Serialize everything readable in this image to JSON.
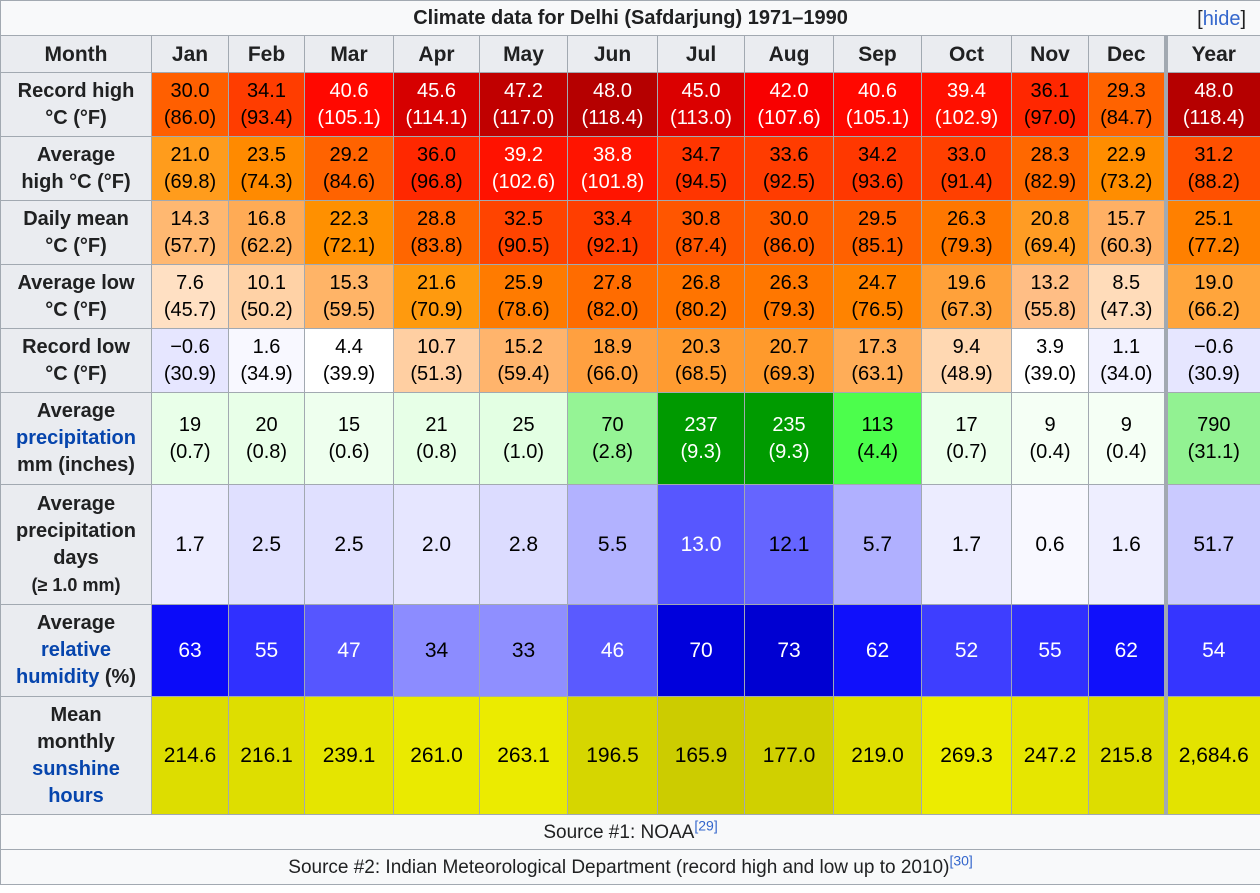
{
  "title": "Climate data for Delhi (Safdarjung) 1971–1990",
  "hide_label": "hide",
  "header": [
    "Month",
    "Jan",
    "Feb",
    "Mar",
    "Apr",
    "May",
    "Jun",
    "Jul",
    "Aug",
    "Sep",
    "Oct",
    "Nov",
    "Dec",
    "Year"
  ],
  "rows": [
    {
      "id": "record-high",
      "label": [
        "Record high",
        "°C (°F)"
      ],
      "cells": [
        {
          "a": "30.0",
          "b": "(86.0)",
          "bg": "#ff5f00",
          "fg": "#000000"
        },
        {
          "a": "34.1",
          "b": "(93.4)",
          "bg": "#ff3d00",
          "fg": "#000000"
        },
        {
          "a": "40.6",
          "b": "(105.1)",
          "bg": "#ff0800",
          "fg": "#ffffff"
        },
        {
          "a": "45.6",
          "b": "(114.1)",
          "bg": "#d60000",
          "fg": "#ffffff"
        },
        {
          "a": "47.2",
          "b": "(117.0)",
          "bg": "#c00000",
          "fg": "#ffffff"
        },
        {
          "a": "48.0",
          "b": "(118.4)",
          "bg": "#b50000",
          "fg": "#ffffff"
        },
        {
          "a": "45.0",
          "b": "(113.0)",
          "bg": "#db0000",
          "fg": "#ffffff"
        },
        {
          "a": "42.0",
          "b": "(107.6)",
          "bg": "#f80000",
          "fg": "#ffffff"
        },
        {
          "a": "40.6",
          "b": "(105.1)",
          "bg": "#ff0800",
          "fg": "#ffffff"
        },
        {
          "a": "39.4",
          "b": "(102.9)",
          "bg": "#ff1000",
          "fg": "#ffffff"
        },
        {
          "a": "36.1",
          "b": "(97.0)",
          "bg": "#ff2700",
          "fg": "#000000"
        },
        {
          "a": "29.3",
          "b": "(84.7)",
          "bg": "#ff6300",
          "fg": "#000000"
        }
      ],
      "year": {
        "a": "48.0",
        "b": "(118.4)",
        "bg": "#b50000",
        "fg": "#ffffff"
      }
    },
    {
      "id": "average-high",
      "label": [
        "Average",
        "high °C (°F)"
      ],
      "cells": [
        {
          "a": "21.0",
          "b": "(69.8)",
          "bg": "#ff9c1c",
          "fg": "#000000"
        },
        {
          "a": "23.5",
          "b": "(74.3)",
          "bg": "#ff8a00",
          "fg": "#000000"
        },
        {
          "a": "29.2",
          "b": "(84.6)",
          "bg": "#ff6300",
          "fg": "#000000"
        },
        {
          "a": "36.0",
          "b": "(96.8)",
          "bg": "#ff2800",
          "fg": "#000000"
        },
        {
          "a": "39.2",
          "b": "(102.6)",
          "bg": "#ff1200",
          "fg": "#ffffff"
        },
        {
          "a": "38.8",
          "b": "(101.8)",
          "bg": "#ff1400",
          "fg": "#ffffff"
        },
        {
          "a": "34.7",
          "b": "(94.5)",
          "bg": "#ff3500",
          "fg": "#000000"
        },
        {
          "a": "33.6",
          "b": "(92.5)",
          "bg": "#ff3c00",
          "fg": "#000000"
        },
        {
          "a": "34.2",
          "b": "(93.6)",
          "bg": "#ff3800",
          "fg": "#000000"
        },
        {
          "a": "33.0",
          "b": "(91.4)",
          "bg": "#ff4000",
          "fg": "#000000"
        },
        {
          "a": "28.3",
          "b": "(82.9)",
          "bg": "#ff6800",
          "fg": "#000000"
        },
        {
          "a": "22.9",
          "b": "(73.2)",
          "bg": "#ff8d00",
          "fg": "#000000"
        }
      ],
      "year": {
        "a": "31.2",
        "b": "(88.2)",
        "bg": "#ff5000",
        "fg": "#000000"
      }
    },
    {
      "id": "daily-mean",
      "label": [
        "Daily mean",
        "°C (°F)"
      ],
      "cells": [
        {
          "a": "14.3",
          "b": "(57.7)",
          "bg": "#ffb871",
          "fg": "#000000"
        },
        {
          "a": "16.8",
          "b": "(62.2)",
          "bg": "#ffab55",
          "fg": "#000000"
        },
        {
          "a": "22.3",
          "b": "(72.1)",
          "bg": "#ff9000",
          "fg": "#000000"
        },
        {
          "a": "28.8",
          "b": "(83.8)",
          "bg": "#ff6600",
          "fg": "#000000"
        },
        {
          "a": "32.5",
          "b": "(90.5)",
          "bg": "#ff4400",
          "fg": "#000000"
        },
        {
          "a": "33.4",
          "b": "(92.1)",
          "bg": "#ff3e00",
          "fg": "#000000"
        },
        {
          "a": "30.8",
          "b": "(87.4)",
          "bg": "#ff5600",
          "fg": "#000000"
        },
        {
          "a": "30.0",
          "b": "(86.0)",
          "bg": "#ff5d00",
          "fg": "#000000"
        },
        {
          "a": "29.5",
          "b": "(85.1)",
          "bg": "#ff6100",
          "fg": "#000000"
        },
        {
          "a": "26.3",
          "b": "(79.3)",
          "bg": "#ff7700",
          "fg": "#000000"
        },
        {
          "a": "20.8",
          "b": "(69.4)",
          "bg": "#ff9c24",
          "fg": "#000000"
        },
        {
          "a": "15.7",
          "b": "(60.3)",
          "bg": "#ffb064",
          "fg": "#000000"
        }
      ],
      "year": {
        "a": "25.1",
        "b": "(77.2)",
        "bg": "#ff8000",
        "fg": "#000000"
      }
    },
    {
      "id": "average-low",
      "label": [
        "Average low",
        "°C (°F)"
      ],
      "cells": [
        {
          "a": "7.6",
          "b": "(45.7)",
          "bg": "#ffe0c3",
          "fg": "#000000"
        },
        {
          "a": "10.1",
          "b": "(50.2)",
          "bg": "#ffd2a6",
          "fg": "#000000"
        },
        {
          "a": "15.3",
          "b": "(59.5)",
          "bg": "#ffb467",
          "fg": "#000000"
        },
        {
          "a": "21.6",
          "b": "(70.9)",
          "bg": "#ff9a0e",
          "fg": "#000000"
        },
        {
          "a": "25.9",
          "b": "(78.6)",
          "bg": "#ff7b00",
          "fg": "#000000"
        },
        {
          "a": "27.8",
          "b": "(82.0)",
          "bg": "#ff6c00",
          "fg": "#000000"
        },
        {
          "a": "26.8",
          "b": "(80.2)",
          "bg": "#ff7400",
          "fg": "#000000"
        },
        {
          "a": "26.3",
          "b": "(79.3)",
          "bg": "#ff7700",
          "fg": "#000000"
        },
        {
          "a": "24.7",
          "b": "(76.5)",
          "bg": "#ff8300",
          "fg": "#000000"
        },
        {
          "a": "19.6",
          "b": "(67.3)",
          "bg": "#ffa13a",
          "fg": "#000000"
        },
        {
          "a": "13.2",
          "b": "(55.8)",
          "bg": "#ffbe85",
          "fg": "#000000"
        },
        {
          "a": "8.5",
          "b": "(47.3)",
          "bg": "#ffdcba",
          "fg": "#000000"
        }
      ],
      "year": {
        "a": "19.0",
        "b": "(66.2)",
        "bg": "#ffa53c",
        "fg": "#000000"
      }
    },
    {
      "id": "record-low",
      "label": [
        "Record low",
        "°C (°F)"
      ],
      "cells": [
        {
          "a": "−0.6",
          "b": "(30.9)",
          "bg": "#e6e6ff",
          "fg": "#000000"
        },
        {
          "a": "1.6",
          "b": "(34.9)",
          "bg": "#f8f8ff",
          "fg": "#000000"
        },
        {
          "a": "4.4",
          "b": "(39.9)",
          "bg": "#ffffff",
          "fg": "#000000"
        },
        {
          "a": "10.7",
          "b": "(51.3)",
          "bg": "#ffcfa2",
          "fg": "#000000"
        },
        {
          "a": "15.2",
          "b": "(59.4)",
          "bg": "#ffb46c",
          "fg": "#000000"
        },
        {
          "a": "18.9",
          "b": "(66.0)",
          "bg": "#ffa040",
          "fg": "#000000"
        },
        {
          "a": "20.3",
          "b": "(68.5)",
          "bg": "#ff9b30",
          "fg": "#000000"
        },
        {
          "a": "20.7",
          "b": "(69.3)",
          "bg": "#ff9a2c",
          "fg": "#000000"
        },
        {
          "a": "17.3",
          "b": "(63.1)",
          "bg": "#ffad58",
          "fg": "#000000"
        },
        {
          "a": "9.4",
          "b": "(48.9)",
          "bg": "#ffd8b2",
          "fg": "#000000"
        },
        {
          "a": "3.9",
          "b": "(39.0)",
          "bg": "#ffffff",
          "fg": "#000000"
        },
        {
          "a": "1.1",
          "b": "(34.0)",
          "bg": "#f2f2ff",
          "fg": "#000000"
        }
      ],
      "year": {
        "a": "−0.6",
        "b": "(30.9)",
        "bg": "#e6e6ff",
        "fg": "#000000"
      }
    },
    {
      "id": "average-precipitation",
      "label": [
        "Average",
        "precipitation",
        "mm (inches)"
      ],
      "link_line": 1,
      "cells": [
        {
          "a": "19",
          "b": "(0.7)",
          "bg": "#e9ffe9",
          "fg": "#000000"
        },
        {
          "a": "20",
          "b": "(0.8)",
          "bg": "#e8ffe8",
          "fg": "#000000"
        },
        {
          "a": "15",
          "b": "(0.6)",
          "bg": "#eeffee",
          "fg": "#000000"
        },
        {
          "a": "21",
          "b": "(0.8)",
          "bg": "#e7ffe7",
          "fg": "#000000"
        },
        {
          "a": "25",
          "b": "(1.0)",
          "bg": "#e3ffe3",
          "fg": "#000000"
        },
        {
          "a": "70",
          "b": "(2.8)",
          "bg": "#95f495",
          "fg": "#000000"
        },
        {
          "a": "237",
          "b": "(9.3)",
          "bg": "#009a00",
          "fg": "#ffffff"
        },
        {
          "a": "235",
          "b": "(9.3)",
          "bg": "#009b00",
          "fg": "#ffffff"
        },
        {
          "a": "113",
          "b": "(4.4)",
          "bg": "#4cfe4c",
          "fg": "#000000"
        },
        {
          "a": "17",
          "b": "(0.7)",
          "bg": "#ecffec",
          "fg": "#000000"
        },
        {
          "a": "9",
          "b": "(0.4)",
          "bg": "#f5fff5",
          "fg": "#000000"
        },
        {
          "a": "9",
          "b": "(0.4)",
          "bg": "#f5fff5",
          "fg": "#000000"
        }
      ],
      "year": {
        "a": "790",
        "b": "(31.1)",
        "bg": "#92f292",
        "fg": "#000000"
      }
    },
    {
      "id": "average-precipitation-days",
      "label": [
        "Average",
        "precipitation",
        "days",
        "(≥ 1.0 mm)"
      ],
      "small_last": true,
      "single": true,
      "cells": [
        {
          "a": "1.7",
          "bg": "#ececff",
          "fg": "#000000"
        },
        {
          "a": "2.5",
          "bg": "#e0e0ff",
          "fg": "#000000"
        },
        {
          "a": "2.5",
          "bg": "#e0e0ff",
          "fg": "#000000"
        },
        {
          "a": "2.0",
          "bg": "#e6e6ff",
          "fg": "#000000"
        },
        {
          "a": "2.8",
          "bg": "#dcdcff",
          "fg": "#000000"
        },
        {
          "a": "5.5",
          "bg": "#b2b2ff",
          "fg": "#000000"
        },
        {
          "a": "13.0",
          "bg": "#5757ff",
          "fg": "#ffffff"
        },
        {
          "a": "12.1",
          "bg": "#6565ff",
          "fg": "#000000"
        },
        {
          "a": "5.7",
          "bg": "#b0b0ff",
          "fg": "#000000"
        },
        {
          "a": "1.7",
          "bg": "#ececff",
          "fg": "#000000"
        },
        {
          "a": "0.6",
          "bg": "#f8f8ff",
          "fg": "#000000"
        },
        {
          "a": "1.6",
          "bg": "#eeeeff",
          "fg": "#000000"
        }
      ],
      "year": {
        "a": "51.7",
        "bg": "#cacaff",
        "fg": "#000000"
      }
    },
    {
      "id": "average-relative-humidity",
      "label_parts": [
        {
          "line": "Average",
          "link": false
        },
        {
          "line": "relative",
          "link": true
        },
        {
          "line": "humidity",
          "link": true,
          "suffix": " (%)"
        }
      ],
      "single": true,
      "cells": [
        {
          "a": "63",
          "bg": "#0b0bf9",
          "fg": "#ffffff"
        },
        {
          "a": "55",
          "bg": "#3030ff",
          "fg": "#ffffff"
        },
        {
          "a": "47",
          "bg": "#5656ff",
          "fg": "#ffffff"
        },
        {
          "a": "34",
          "bg": "#8c8cff",
          "fg": "#000000"
        },
        {
          "a": "33",
          "bg": "#8f8fff",
          "fg": "#000000"
        },
        {
          "a": "46",
          "bg": "#5a5aff",
          "fg": "#ffffff"
        },
        {
          "a": "70",
          "bg": "#0000dc",
          "fg": "#ffffff"
        },
        {
          "a": "73",
          "bg": "#0000d2",
          "fg": "#ffffff"
        },
        {
          "a": "62",
          "bg": "#1010fb",
          "fg": "#ffffff"
        },
        {
          "a": "52",
          "bg": "#3e3eff",
          "fg": "#ffffff"
        },
        {
          "a": "55",
          "bg": "#3030ff",
          "fg": "#ffffff"
        },
        {
          "a": "62",
          "bg": "#1010fb",
          "fg": "#ffffff"
        }
      ],
      "year": {
        "a": "54",
        "bg": "#3535ff",
        "fg": "#ffffff"
      }
    },
    {
      "id": "mean-monthly-sunshine-hours",
      "label_parts": [
        {
          "line": "Mean",
          "link": false
        },
        {
          "line": "monthly",
          "link": false
        },
        {
          "line": "sunshine",
          "link": true
        },
        {
          "line": "hours",
          "link": true
        }
      ],
      "single": true,
      "cells": [
        {
          "a": "214.6",
          "bg": "#dddd00",
          "fg": "#000000"
        },
        {
          "a": "216.1",
          "bg": "#dede00",
          "fg": "#000000"
        },
        {
          "a": "239.1",
          "bg": "#e5e500",
          "fg": "#000000"
        },
        {
          "a": "261.0",
          "bg": "#eaea00",
          "fg": "#000000"
        },
        {
          "a": "263.1",
          "bg": "#ebeb00",
          "fg": "#000000"
        },
        {
          "a": "196.5",
          "bg": "#d6d600",
          "fg": "#000000"
        },
        {
          "a": "165.9",
          "bg": "#cccc00",
          "fg": "#000000"
        },
        {
          "a": "177.0",
          "bg": "#d0d000",
          "fg": "#000000"
        },
        {
          "a": "219.0",
          "bg": "#dfdf00",
          "fg": "#000000"
        },
        {
          "a": "269.3",
          "bg": "#ecec00",
          "fg": "#000000"
        },
        {
          "a": "247.2",
          "bg": "#e6e600",
          "fg": "#000000"
        },
        {
          "a": "215.8",
          "bg": "#dddd00",
          "fg": "#000000"
        }
      ],
      "year": {
        "a": "2,684.6",
        "bg": "#e3e300",
        "fg": "#000000"
      }
    }
  ],
  "row_heights": [
    64,
    64,
    64,
    64,
    64,
    92,
    120,
    92,
    118
  ],
  "sources": [
    {
      "text": "Source #1: NOAA",
      "ref": "[29]"
    },
    {
      "text": "Source #2: Indian Meteorological Department (record high and low up to 2010)",
      "ref": "[30]"
    }
  ]
}
